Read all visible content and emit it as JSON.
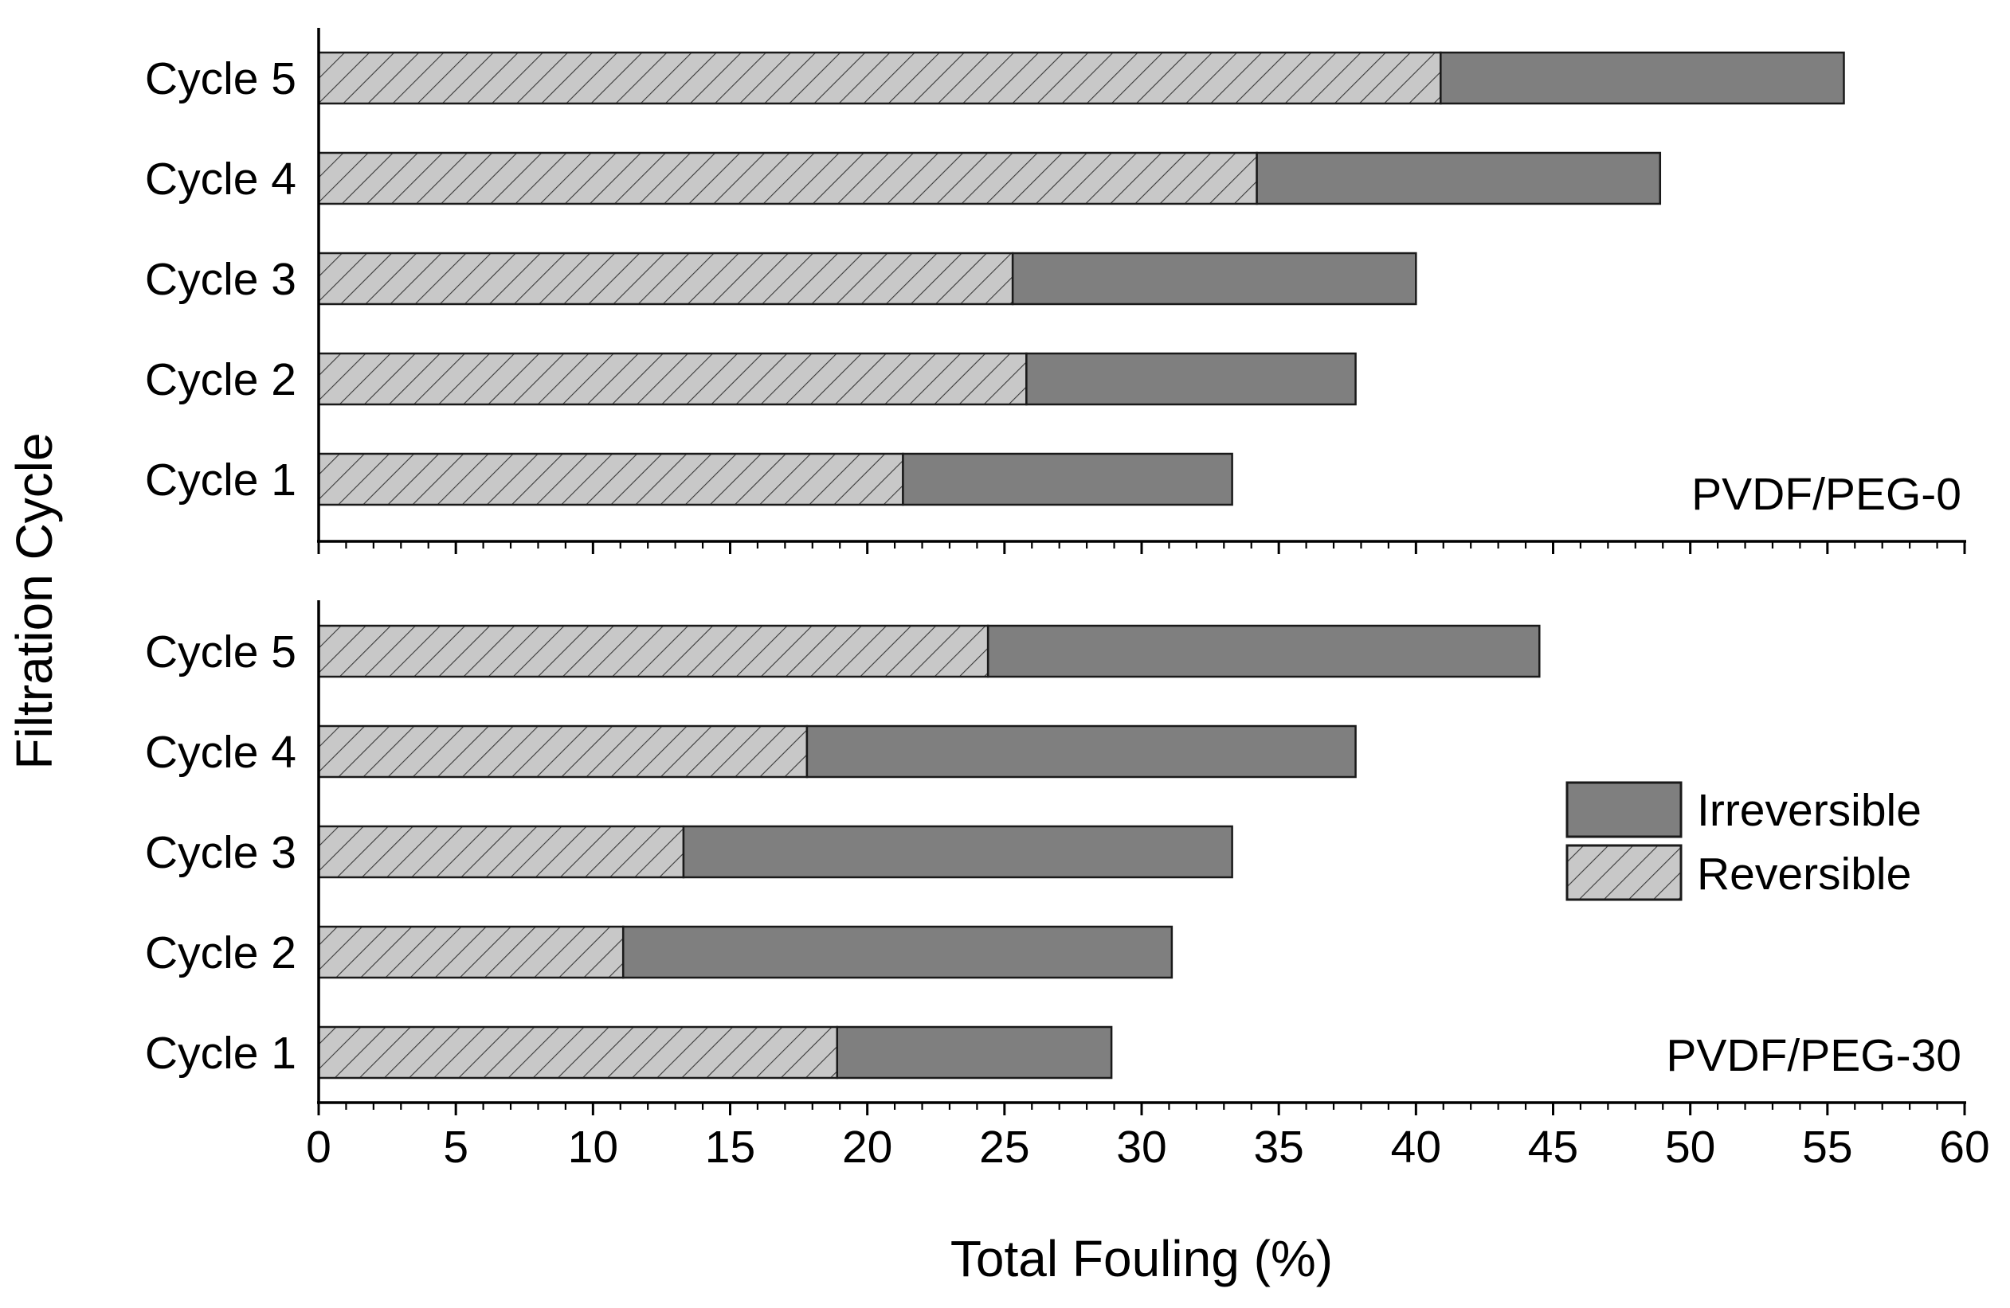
{
  "chart_data": {
    "type": "bar",
    "orientation": "horizontal",
    "stacked": true,
    "xlabel": "Total Fouling (%)",
    "ylabel": "Filtration Cycle",
    "xlim": [
      0,
      60
    ],
    "xticks": [
      "0",
      "5",
      "10",
      "15",
      "20",
      "25",
      "30",
      "35",
      "40",
      "45",
      "50",
      "55",
      "60"
    ],
    "xtick_values": [
      0,
      5,
      10,
      15,
      20,
      25,
      30,
      35,
      40,
      45,
      50,
      55,
      60
    ],
    "legend": {
      "position": "right",
      "entries": [
        {
          "name": "Irreversible",
          "style": "solid"
        },
        {
          "name": "Reversible",
          "style": "hatched"
        }
      ]
    },
    "colors": {
      "irreversible": "#7f7f7f",
      "reversible": "#c8c8c8",
      "hatch": "#3a3a3a",
      "edge": "#1a1a1a"
    },
    "panels": [
      {
        "label": "PVDF/PEG-0",
        "categories": [
          "Cycle 5",
          "Cycle 4",
          "Cycle 3",
          "Cycle 2",
          "Cycle 1"
        ],
        "series": [
          {
            "name": "Reversible",
            "values": [
              40.9,
              34.2,
              25.3,
              25.8,
              21.3
            ]
          },
          {
            "name": "Irreversible",
            "values": [
              14.7,
              14.7,
              14.7,
              12.0,
              12.0
            ]
          }
        ],
        "totals": [
          55.6,
          48.9,
          40.0,
          37.8,
          33.3
        ]
      },
      {
        "label": "PVDF/PEG-30",
        "categories": [
          "Cycle 5",
          "Cycle 4",
          "Cycle 3",
          "Cycle 2",
          "Cycle 1"
        ],
        "series": [
          {
            "name": "Reversible",
            "values": [
              24.4,
              17.8,
              13.3,
              11.1,
              18.9
            ]
          },
          {
            "name": "Irreversible",
            "values": [
              20.1,
              20.0,
              20.0,
              20.0,
              10.0
            ]
          }
        ],
        "totals": [
          44.5,
          37.8,
          33.3,
          31.1,
          28.9
        ]
      }
    ]
  }
}
